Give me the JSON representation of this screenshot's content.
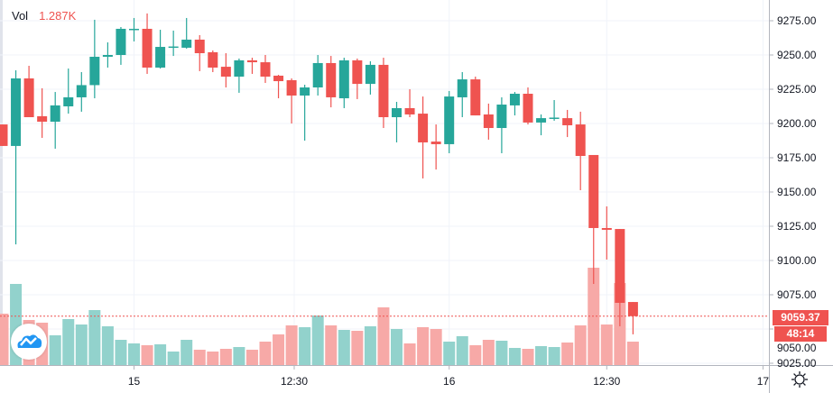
{
  "legend": {
    "label": "Vol",
    "value": "1.287K"
  },
  "last_price": {
    "label": "9059.37",
    "countdown": "48:14"
  },
  "colors": {
    "up": "#26a69a",
    "down": "#ef5350",
    "up_volume": "#92d2cc",
    "down_volume": "#f7a9a7",
    "grid": "#f0f3fa",
    "last_price_line": "#ef5350"
  },
  "icons": {
    "logo": "tradingview-cloud-logo",
    "settings": "gear-icon"
  },
  "chart_data": {
    "type": "candlestick",
    "title": "",
    "grid": true,
    "price_axis": {
      "position": "right",
      "range": [
        9025,
        9275
      ],
      "tick_labels": [
        "9275.00",
        "9250.00",
        "9225.00",
        "9200.00",
        "9175.00",
        "9150.00",
        "9125.00",
        "9100.00",
        "9075.00",
        "9050.00",
        "9025.00"
      ]
    },
    "time_axis": {
      "ticks": [
        {
          "label": "15",
          "bar": 10
        },
        {
          "label": "12:30",
          "bar": 22.2
        },
        {
          "label": "16",
          "bar": 34
        },
        {
          "label": "12:30",
          "bar": 46
        },
        {
          "label": "17",
          "bar": 57.9
        }
      ]
    },
    "open": [
      9199.3,
      9183.6,
      9232.9,
      9205.3,
      9201.3,
      9212.5,
      9219.1,
      9228.0,
      9248.7,
      9250.0,
      9268.4,
      9269.1,
      9240.8,
      9255.9,
      9255.3,
      9261.2,
      9252.0,
      9241.4,
      9234.2,
      9246.1,
      9244.7,
      9234.9,
      9231.6,
      9220.4,
      9226.3,
      9244.1,
      9218.4,
      9246.1,
      9228.9,
      9242.8,
      9204.6,
      9211.2,
      9207.2,
      9186.8,
      9184.9,
      9219.1,
      9232.2,
      9206.6,
      9196.7,
      9213.2,
      9221.7,
      9200.7,
      9203.9,
      9203.9,
      9199.3,
      9177.0,
      9123.7,
      9123.0,
      9069.7
    ],
    "high": [
      9199.3,
      9238.8,
      9242.1,
      9225.7,
      9223.0,
      9240.1,
      9237.5,
      9275.7,
      9259.2,
      9270.4,
      9277.0,
      9280.3,
      9268.4,
      9267.8,
      9277.0,
      9264.5,
      9253.3,
      9251.3,
      9247.4,
      9248.0,
      9250.0,
      9235.5,
      9232.9,
      9228.3,
      9250.0,
      9249.3,
      9248.0,
      9247.4,
      9245.4,
      9248.0,
      9215.8,
      9225.0,
      9219.7,
      9199.3,
      9223.7,
      9237.5,
      9234.2,
      9214.5,
      9219.1,
      9223.0,
      9226.3,
      9206.6,
      9217.1,
      9209.9,
      9208.6,
      9177.0,
      9139.5,
      9123.0,
      9069.7
    ],
    "low": [
      9183.6,
      9111.8,
      9204.6,
      9189.5,
      9181.6,
      9207.2,
      9208.6,
      9218.4,
      9240.8,
      9242.8,
      9259.9,
      9236.2,
      9240.1,
      9249.3,
      9254.6,
      9238.2,
      9237.5,
      9226.3,
      9222.4,
      9236.2,
      9229.6,
      9218.4,
      9200.0,
      9187.5,
      9220.4,
      9211.8,
      9211.2,
      9217.8,
      9221.1,
      9196.7,
      9186.2,
      9204.6,
      9159.9,
      9166.4,
      9178.3,
      9204.6,
      9205.9,
      9188.2,
      9178.3,
      9205.9,
      9199.3,
      9191.4,
      9202.0,
      9190.1,
      9151.3,
      9082.9,
      9100.7,
      9052.0,
      9046.1
    ],
    "close": [
      9183.6,
      9232.9,
      9204.6,
      9201.3,
      9213.2,
      9219.1,
      9228.0,
      9248.7,
      9250.0,
      9269.1,
      9269.1,
      9240.8,
      9255.9,
      9256.2,
      9261.2,
      9251.3,
      9240.8,
      9234.2,
      9246.1,
      9244.7,
      9234.2,
      9230.9,
      9220.4,
      9226.3,
      9244.1,
      9219.1,
      9246.1,
      9228.9,
      9242.8,
      9204.6,
      9211.2,
      9206.6,
      9186.2,
      9184.9,
      9219.7,
      9232.2,
      9205.9,
      9196.7,
      9213.8,
      9221.7,
      9200.7,
      9203.9,
      9204.3,
      9198.7,
      9176.3,
      9123.7,
      9122.4,
      9069.1,
      9059.37
    ],
    "volume": [
      2767,
      4341,
      2433,
      2290,
      1622,
      2480,
      2194,
      2957,
      2099,
      1383,
      1193,
      1097,
      1145,
      763,
      1383,
      859,
      763,
      906,
      1002,
      859,
      1288,
      1670,
      2147,
      2051,
      2671,
      2147,
      1908,
      1860,
      2099,
      3101,
      1956,
      1193,
      2051,
      1956,
      1288,
      1574,
      1097,
      1383,
      1336,
      954,
      906,
      1049,
      1002,
      1240,
      2147,
      5199,
      2194,
      4388,
      1287
    ]
  }
}
